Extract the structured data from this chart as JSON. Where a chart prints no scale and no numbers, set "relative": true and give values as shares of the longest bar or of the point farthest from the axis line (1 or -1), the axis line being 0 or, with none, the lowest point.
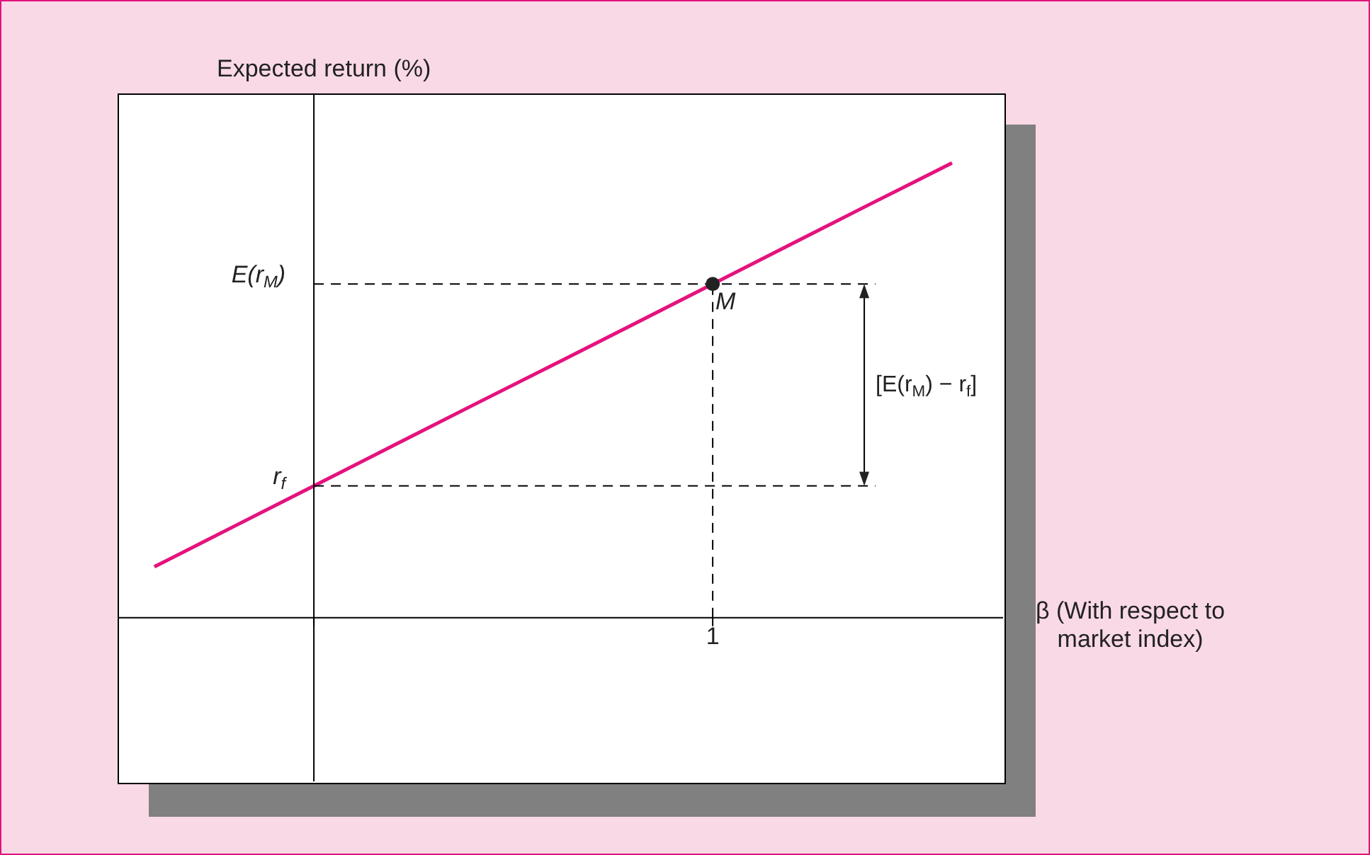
{
  "chart_data": {
    "type": "line",
    "relative": true,
    "xlabel": "β (With respect to\nmarket index)",
    "ylabel": "Expected return (%)",
    "legend": false,
    "categories": [
      null,
      null,
      null,
      null,
      null,
      null,
      null,
      null,
      null,
      null,
      null
    ],
    "series": [
      {
        "color": "#e5127d",
        "marker": "none",
        "values": [
          0.112,
          0.201,
          0.29,
          0.379,
          0.468,
          0.556,
          0.645,
          0.734,
          0.823,
          0.912,
          1
        ]
      }
    ],
    "ref_lines": [
      {
        "axis": "y",
        "value": 0.29,
        "label": "r$_{f}$",
        "line_style": "dashed"
      },
      {
        "axis": "y",
        "value": 0.734,
        "label": "E(r$_{M}$)",
        "line_style": "dashed"
      }
    ],
    "annotations": [
      {
        "text": "M",
        "y": 0.734
      },
      "[E(r$_{M}$) − r$_{f}$]",
      "1"
    ]
  }
}
